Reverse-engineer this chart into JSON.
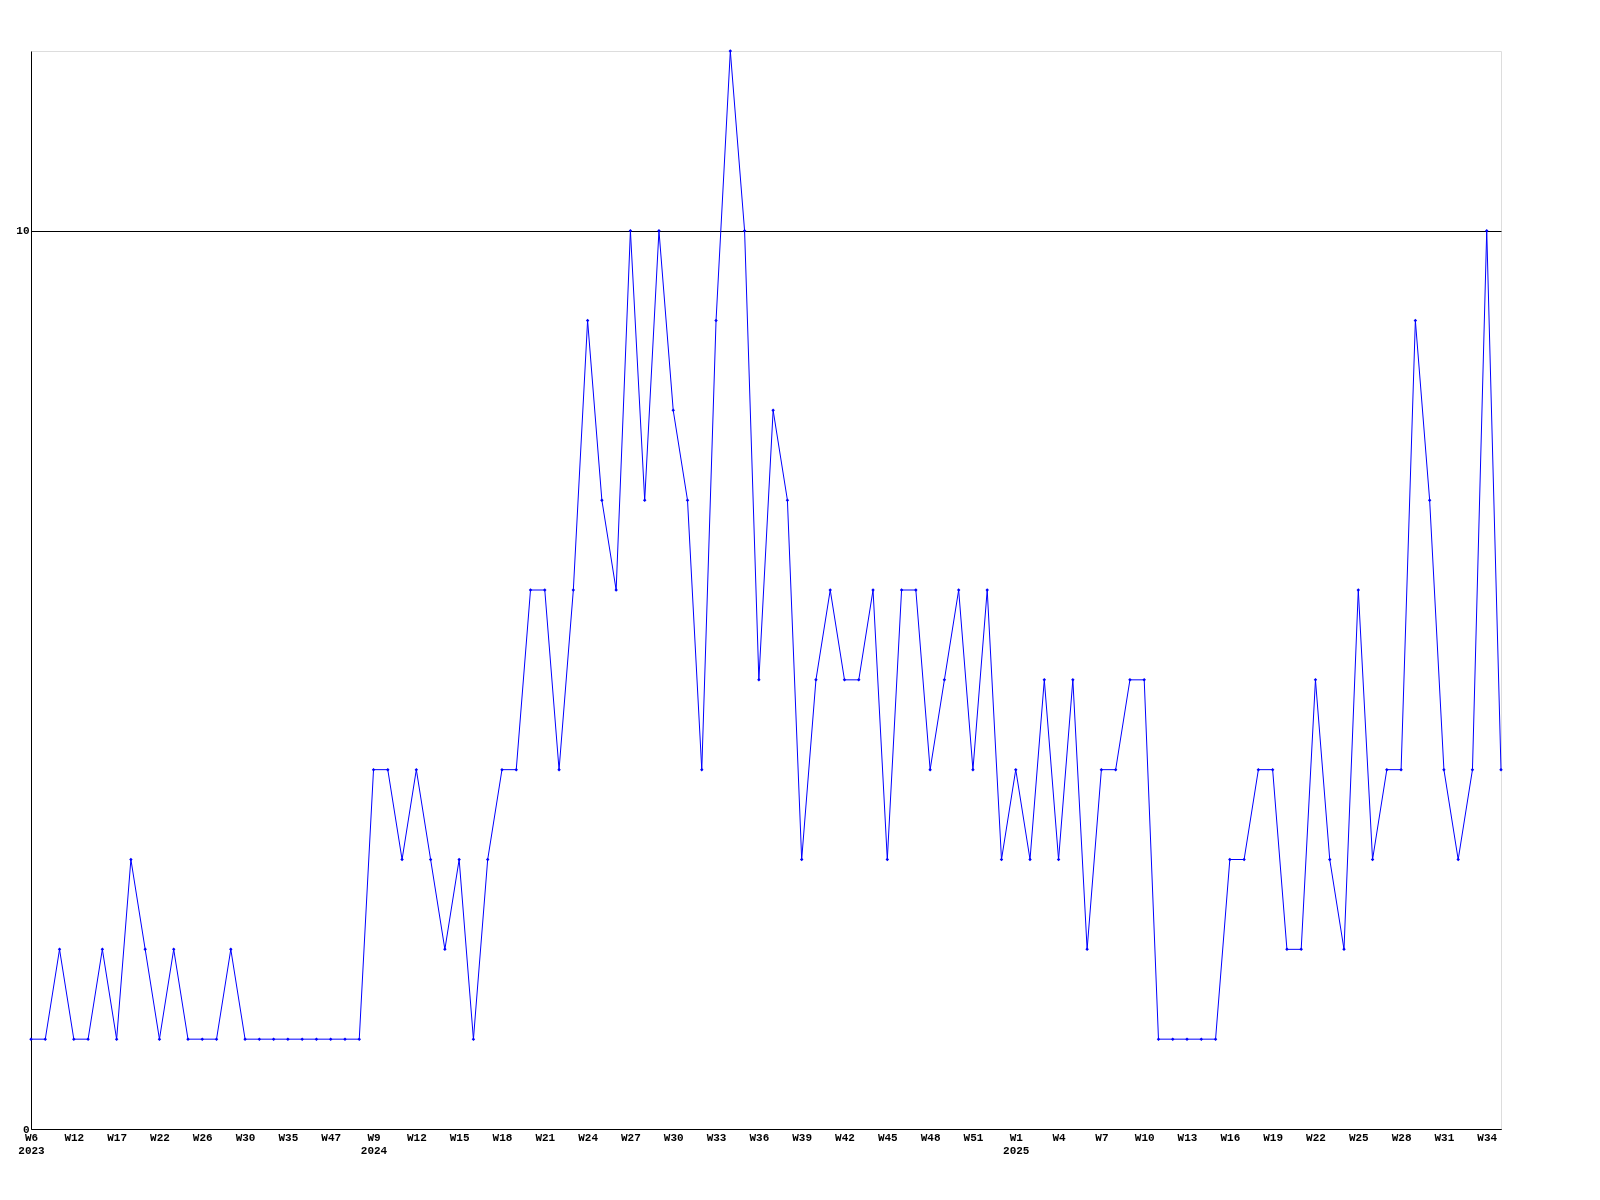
{
  "chart_data": {
    "type": "line",
    "categories": [
      "W6\n2023",
      null,
      null,
      "W12",
      null,
      null,
      "W17",
      null,
      null,
      "W22",
      null,
      null,
      "W26",
      null,
      null,
      "W30",
      null,
      null,
      "W35",
      null,
      null,
      "W47",
      null,
      null,
      "W9\n2024",
      null,
      null,
      "W12",
      null,
      null,
      "W15",
      null,
      null,
      "W18",
      null,
      null,
      "W21",
      null,
      null,
      "W24",
      null,
      null,
      "W27",
      null,
      null,
      "W30",
      null,
      null,
      "W33",
      null,
      null,
      "W36",
      null,
      null,
      "W39",
      null,
      null,
      "W42",
      null,
      null,
      "W45",
      null,
      null,
      "W48",
      null,
      null,
      "W51",
      null,
      null,
      "W1\n2025",
      null,
      null,
      "W4",
      null,
      null,
      "W7",
      null,
      null,
      "W10",
      null,
      null,
      "W13",
      null,
      null,
      "W16",
      null,
      null,
      "W19",
      null,
      null,
      "W22",
      null,
      null,
      "W25",
      null,
      null,
      "W28",
      null,
      null,
      "W31",
      null,
      null,
      "W34",
      null
    ],
    "series": [
      {
        "color": "#0000ff",
        "values": [
          1,
          1,
          2,
          1,
          1,
          2,
          1,
          3,
          2,
          1,
          2,
          1,
          1,
          1,
          2,
          1,
          1,
          1,
          1,
          1,
          1,
          1,
          1,
          1,
          4,
          4,
          3,
          4,
          3,
          2,
          3,
          1,
          3,
          4,
          4,
          6,
          6,
          4,
          6,
          9,
          7,
          6,
          10,
          7,
          10,
          8,
          7,
          4,
          9,
          12,
          10,
          5,
          8,
          7,
          3,
          5,
          6,
          5,
          5,
          6,
          3,
          6,
          6,
          4,
          5,
          6,
          4,
          6,
          3,
          4,
          3,
          5,
          3,
          5,
          2,
          4,
          4,
          5,
          5,
          1,
          1,
          1,
          1,
          1,
          3,
          3,
          4,
          4,
          2,
          2,
          5,
          3,
          2,
          6,
          3,
          4,
          4,
          9,
          7,
          4,
          3,
          4,
          10,
          4
        ]
      }
    ],
    "ylim": [
      0,
      12
    ],
    "yticks": [
      0,
      10
    ],
    "grid": "y",
    "marker": "diamond",
    "line_style": "solid",
    "legend": false
  }
}
